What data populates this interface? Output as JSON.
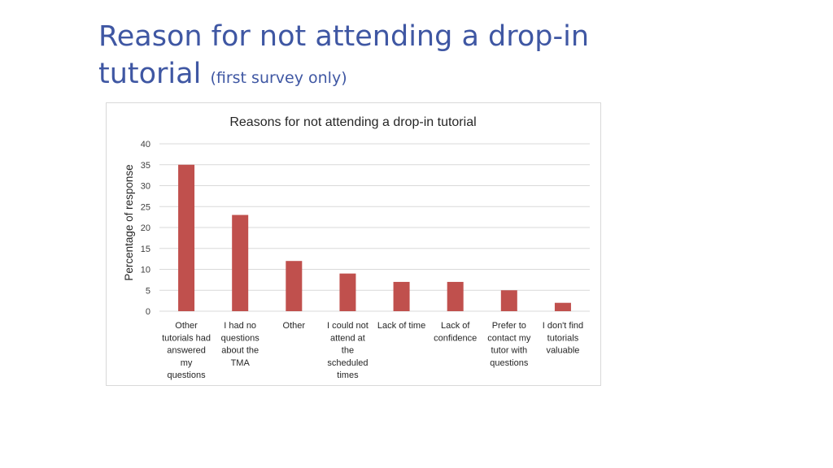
{
  "slide": {
    "title": "Reason for not attending a drop-in",
    "title_line2": "tutorial",
    "subtitle": "(first survey only)"
  },
  "chart_data": {
    "type": "bar",
    "title": "Reasons for not attending a drop-in tutorial",
    "xlabel": "",
    "ylabel": "Percentage of response",
    "ylim": [
      0,
      40
    ],
    "yticks": [
      0,
      5,
      10,
      15,
      20,
      25,
      30,
      35,
      40
    ],
    "grid": true,
    "legend": "none",
    "bar_color": "#c0504d",
    "categories": [
      [
        "Other",
        "tutorials had",
        "answered",
        "my",
        "questions"
      ],
      [
        "I had no",
        "questions",
        "about the",
        "TMA"
      ],
      [
        "Other"
      ],
      [
        "I could not",
        "attend at",
        "the",
        "scheduled",
        "times"
      ],
      [
        "Lack of time"
      ],
      [
        "Lack of",
        "confidence"
      ],
      [
        "Prefer to",
        "contact my",
        "tutor with",
        "questions"
      ],
      [
        "I don't find",
        "tutorials",
        "valuable"
      ]
    ],
    "values": [
      35,
      23,
      12,
      9,
      7,
      7,
      5,
      2
    ]
  }
}
